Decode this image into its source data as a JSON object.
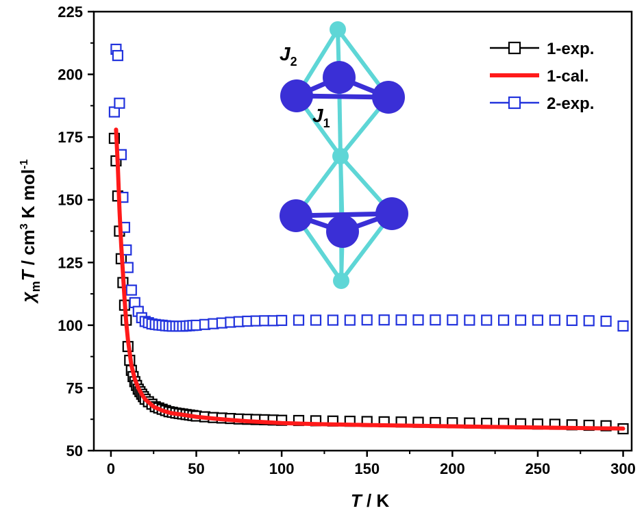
{
  "chart_data": {
    "type": "scatter",
    "xlabel": {
      "symbol": "T",
      "unit": " / K"
    },
    "ylabel": {
      "symbol": "χ",
      "sub": "m",
      "symbol2": "T",
      "unit1": " / cm",
      "sup": "3",
      "unit2": " K mol",
      "sup2": "-1"
    },
    "xlim": [
      -10,
      305
    ],
    "ylim": [
      50,
      225
    ],
    "xticks": [
      0,
      50,
      100,
      150,
      200,
      250,
      300
    ],
    "yticks": [
      50,
      75,
      100,
      125,
      150,
      175,
      200,
      225
    ],
    "legend_position": "top-right",
    "legend": [
      {
        "label": "1-exp.",
        "style": "line-square",
        "color": "#000000"
      },
      {
        "label": "1-cal.",
        "style": "line",
        "color": "#ff1a1a"
      },
      {
        "label": "2-exp.",
        "style": "line-square",
        "color": "#2233dd"
      }
    ],
    "series": [
      {
        "name": "1-exp.",
        "marker": "square",
        "color": "#000000",
        "x": [
          2,
          3,
          4,
          5,
          6,
          7,
          8,
          9,
          10,
          11,
          12,
          13,
          14,
          15,
          16,
          17,
          18,
          19,
          20,
          22,
          24,
          26,
          28,
          30,
          32,
          34,
          36,
          38,
          40,
          42,
          44,
          46,
          48,
          50,
          55,
          60,
          65,
          70,
          75,
          80,
          85,
          90,
          95,
          100,
          110,
          120,
          130,
          140,
          150,
          160,
          170,
          180,
          190,
          200,
          210,
          220,
          230,
          240,
          250,
          260,
          270,
          280,
          290,
          300
        ],
        "y": [
          174.5,
          165.5,
          151.5,
          137.5,
          126.5,
          117,
          108,
          102,
          91.5,
          86,
          82,
          79.5,
          77.5,
          76,
          74.5,
          73.5,
          72.5,
          71.5,
          70.5,
          69.5,
          68.5,
          67.5,
          67,
          66.5,
          66,
          65.5,
          65.3,
          65,
          64.8,
          64.6,
          64.4,
          64.2,
          64,
          63.8,
          63.5,
          63.2,
          63,
          62.8,
          62.6,
          62.5,
          62.4,
          62.3,
          62.2,
          62.1,
          62,
          61.9,
          61.8,
          61.7,
          61.6,
          61.5,
          61.4,
          61.3,
          61.2,
          61.1,
          61,
          60.9,
          60.8,
          60.7,
          60.6,
          60.5,
          60.3,
          60.1,
          59.9,
          58.7
        ]
      },
      {
        "name": "1-cal.",
        "marker": "none",
        "color": "#ff1a1a",
        "x": [
          3,
          4,
          5,
          6,
          7,
          8,
          9,
          10,
          12,
          14,
          16,
          18,
          20,
          25,
          30,
          35,
          40,
          50,
          60,
          70,
          80,
          100,
          120,
          150,
          200,
          250,
          300
        ],
        "y": [
          178,
          164,
          146,
          132,
          121,
          110,
          101,
          94,
          84,
          78.5,
          75,
          72.5,
          70.5,
          67.5,
          66,
          65,
          64.5,
          63.5,
          62.8,
          62.2,
          61.7,
          61,
          60.6,
          60.2,
          59.7,
          59.2,
          58.8
        ]
      },
      {
        "name": "2-exp.",
        "marker": "square",
        "color": "#2233dd",
        "x": [
          2,
          3,
          4,
          5,
          6,
          7,
          8,
          9,
          10,
          12,
          14,
          16,
          18,
          20,
          22,
          24,
          26,
          28,
          30,
          32,
          34,
          36,
          38,
          40,
          42,
          44,
          46,
          48,
          50,
          55,
          60,
          65,
          70,
          75,
          80,
          85,
          90,
          95,
          100,
          110,
          120,
          130,
          140,
          150,
          160,
          170,
          180,
          190,
          200,
          210,
          220,
          230,
          240,
          250,
          260,
          270,
          280,
          290,
          300
        ],
        "y": [
          185,
          210,
          207.5,
          188.5,
          168,
          151,
          139,
          130,
          123,
          114,
          109,
          105.5,
          103,
          101.5,
          101,
          100.5,
          100.3,
          100.1,
          100,
          99.8,
          99.7,
          99.6,
          99.6,
          99.6,
          99.6,
          99.7,
          99.8,
          99.9,
          100,
          100.3,
          100.6,
          100.9,
          101.2,
          101.4,
          101.6,
          101.7,
          101.8,
          101.8,
          101.9,
          102,
          102,
          102,
          102,
          102.1,
          102.1,
          102.1,
          102.1,
          102.1,
          102.1,
          102,
          102,
          102,
          102,
          102,
          102,
          101.9,
          101.8,
          101.6,
          99.7
        ]
      }
    ]
  },
  "inset": {
    "labels": {
      "j2": {
        "main": "J",
        "sub": "2"
      },
      "j1": {
        "main": "J",
        "sub": "1"
      }
    },
    "colors": {
      "metal": "#3a2fd6",
      "bridge": "#5ed6d6",
      "bond": "#3a2fd6"
    }
  }
}
